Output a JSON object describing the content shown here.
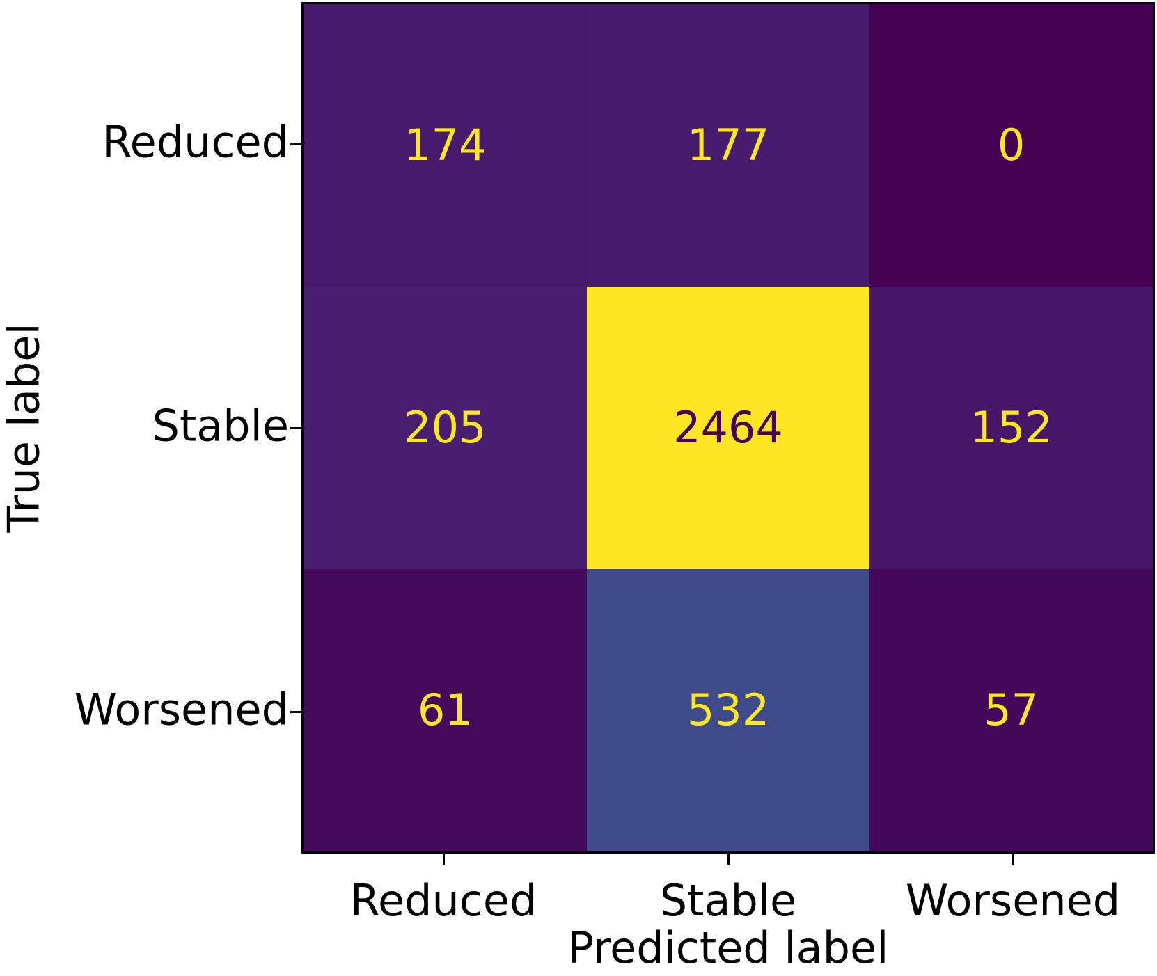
{
  "chart_data": {
    "type": "heatmap",
    "subtype": "confusion-matrix",
    "xlabel": "Predicted label",
    "ylabel": "True label",
    "x_categories": [
      "Reduced",
      "Stable",
      "Worsened"
    ],
    "y_categories": [
      "Reduced",
      "Stable",
      "Worsened"
    ],
    "matrix": [
      [
        174,
        177,
        0
      ],
      [
        205,
        2464,
        152
      ],
      [
        61,
        532,
        57
      ]
    ],
    "colormap": "viridis",
    "vmin": 0,
    "vmax": 2464,
    "cell_colors": [
      [
        "#471a6d",
        "#471b6d",
        "#440154"
      ],
      [
        "#471e70",
        "#fde725",
        "#461768"
      ],
      [
        "#45095c",
        "#3e4a89",
        "#44085b"
      ]
    ],
    "cell_text_colors": [
      [
        "#fde725",
        "#fde725",
        "#fde725"
      ],
      [
        "#fde725",
        "#440154",
        "#fde725"
      ],
      [
        "#fde725",
        "#fde725",
        "#fde725"
      ]
    ],
    "layout": {
      "grid": false,
      "legend": false,
      "spine_color": "#000000",
      "background": "#ffffff",
      "text_color": "#000000"
    }
  }
}
